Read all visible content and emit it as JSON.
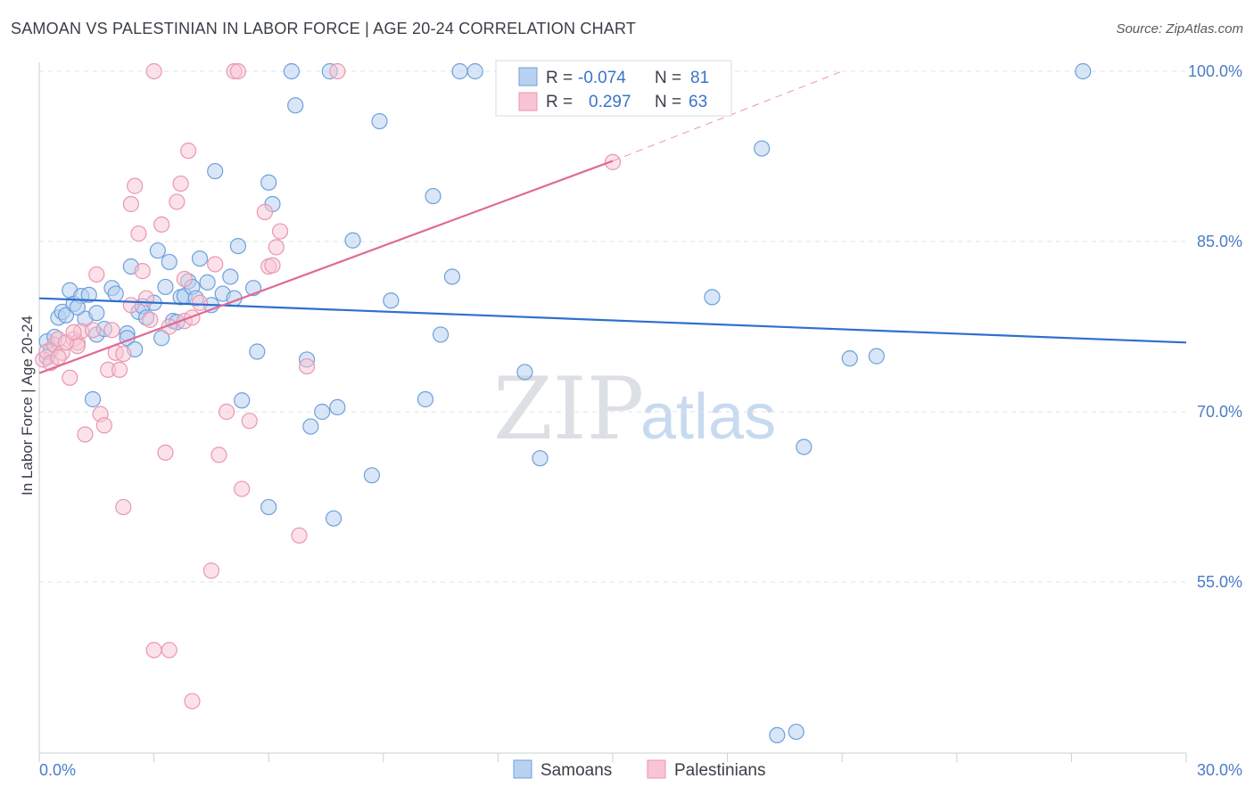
{
  "title": "SAMOAN VS PALESTINIAN IN LABOR FORCE | AGE 20-24 CORRELATION CHART",
  "source": "Source: ZipAtlas.com",
  "watermark": {
    "zip": "ZIP",
    "atlas": "atlas"
  },
  "colors": {
    "blue_fill": "#b8d1f0",
    "blue_stroke": "#6f9fdc",
    "blue_line": "#2f6fce",
    "pink_fill": "#f7c5d4",
    "pink_stroke": "#ea96b1",
    "pink_line": "#e06a96",
    "tick_text": "#4a7cc7",
    "grid": "#dde3ea"
  },
  "legend": {
    "r_label": "R =",
    "n_label": "N =",
    "rows": [
      {
        "series": "Samoans",
        "r": "-0.074",
        "n": "81"
      },
      {
        "series": "Palestinians",
        "r": "0.297",
        "n": "63"
      }
    ]
  },
  "bottom_legend": [
    "Samoans",
    "Palestinians"
  ],
  "chart_data": {
    "type": "scatter",
    "title": "SAMOAN VS PALESTINIAN IN LABOR FORCE | AGE 20-24 CORRELATION CHART",
    "xlabel": "",
    "ylabel": "In Labor Force | Age 20-24",
    "xlim": [
      0,
      30
    ],
    "ylim": [
      40,
      100
    ],
    "x_tick_labels": [
      "0.0%",
      "30.0%"
    ],
    "y_ticks": [
      55,
      70,
      85,
      100
    ],
    "y_tick_labels": [
      "55.0%",
      "70.0%",
      "85.0%",
      "100.0%"
    ],
    "series": [
      {
        "name": "Samoans",
        "r": -0.074,
        "n": 81,
        "trend": {
          "x": [
            0,
            30
          ],
          "y": [
            80.0,
            76.1
          ]
        },
        "points": [
          [
            0.2,
            76.2
          ],
          [
            0.4,
            76.6
          ],
          [
            0.3,
            75.4
          ],
          [
            0.2,
            74.8
          ],
          [
            0.5,
            78.3
          ],
          [
            0.6,
            78.8
          ],
          [
            0.8,
            80.7
          ],
          [
            0.7,
            78.5
          ],
          [
            0.9,
            79.5
          ],
          [
            1.1,
            80.2
          ],
          [
            1.2,
            78.2
          ],
          [
            1.3,
            80.3
          ],
          [
            1.0,
            79.2
          ],
          [
            1.5,
            78.7
          ],
          [
            1.5,
            76.8
          ],
          [
            1.7,
            77.3
          ],
          [
            1.9,
            80.9
          ],
          [
            2.0,
            80.4
          ],
          [
            2.3,
            76.9
          ],
          [
            2.3,
            76.5
          ],
          [
            2.5,
            75.5
          ],
          [
            2.4,
            82.8
          ],
          [
            2.6,
            78.8
          ],
          [
            2.7,
            79.3
          ],
          [
            2.8,
            78.3
          ],
          [
            3.0,
            79.6
          ],
          [
            3.1,
            84.2
          ],
          [
            3.2,
            76.5
          ],
          [
            3.3,
            81.0
          ],
          [
            3.4,
            83.2
          ],
          [
            3.5,
            78.0
          ],
          [
            3.6,
            77.9
          ],
          [
            3.7,
            80.1
          ],
          [
            3.9,
            81.5
          ],
          [
            3.8,
            80.2
          ],
          [
            4.0,
            81.0
          ],
          [
            4.1,
            80.0
          ],
          [
            4.2,
            83.5
          ],
          [
            4.4,
            81.4
          ],
          [
            4.5,
            79.4
          ],
          [
            4.6,
            91.2
          ],
          [
            4.8,
            80.4
          ],
          [
            5.0,
            81.9
          ],
          [
            5.2,
            84.6
          ],
          [
            5.1,
            80.0
          ],
          [
            5.6,
            80.9
          ],
          [
            5.7,
            75.3
          ],
          [
            5.3,
            71.0
          ],
          [
            6.0,
            90.2
          ],
          [
            6.1,
            88.3
          ],
          [
            6.0,
            61.6
          ],
          [
            6.6,
            100.0
          ],
          [
            6.7,
            97.0
          ],
          [
            7.0,
            74.6
          ],
          [
            7.1,
            68.7
          ],
          [
            7.4,
            70.0
          ],
          [
            7.6,
            100.0
          ],
          [
            7.7,
            60.6
          ],
          [
            7.8,
            70.4
          ],
          [
            8.2,
            85.1
          ],
          [
            8.7,
            64.4
          ],
          [
            8.9,
            95.6
          ],
          [
            9.2,
            79.8
          ],
          [
            10.1,
            71.1
          ],
          [
            10.3,
            89.0
          ],
          [
            10.5,
            76.8
          ],
          [
            10.8,
            81.9
          ],
          [
            11.0,
            100.0
          ],
          [
            11.4,
            100.0
          ],
          [
            12.7,
            73.5
          ],
          [
            13.1,
            65.9
          ],
          [
            15.1,
            100.0
          ],
          [
            17.6,
            80.1
          ],
          [
            18.9,
            93.2
          ],
          [
            20.0,
            66.9
          ],
          [
            21.2,
            74.7
          ],
          [
            21.9,
            74.9
          ],
          [
            27.3,
            100.0
          ],
          [
            19.3,
            41.5
          ],
          [
            19.8,
            41.8
          ],
          [
            1.4,
            71.1
          ]
        ]
      },
      {
        "name": "Palestinians",
        "r": 0.297,
        "n": 63,
        "trend": {
          "x": [
            0,
            15
          ],
          "y": [
            73.4,
            92.1
          ]
        },
        "trend_dashed": {
          "x": [
            15,
            21
          ],
          "y": [
            92.1,
            100
          ]
        },
        "points": [
          [
            0.1,
            74.6
          ],
          [
            0.2,
            75.3
          ],
          [
            0.3,
            74.3
          ],
          [
            0.4,
            75.9
          ],
          [
            0.5,
            76.4
          ],
          [
            0.6,
            75.2
          ],
          [
            0.8,
            73.0
          ],
          [
            0.9,
            76.4
          ],
          [
            1.0,
            76.1
          ],
          [
            1.1,
            77.1
          ],
          [
            1.2,
            68.0
          ],
          [
            1.4,
            77.2
          ],
          [
            1.5,
            82.1
          ],
          [
            1.6,
            69.8
          ],
          [
            1.7,
            68.8
          ],
          [
            1.8,
            73.7
          ],
          [
            1.9,
            77.2
          ],
          [
            2.0,
            75.2
          ],
          [
            2.1,
            73.7
          ],
          [
            2.2,
            75.1
          ],
          [
            2.4,
            79.4
          ],
          [
            2.2,
            61.6
          ],
          [
            2.4,
            88.3
          ],
          [
            2.5,
            89.9
          ],
          [
            2.6,
            85.7
          ],
          [
            2.7,
            82.4
          ],
          [
            2.8,
            80.0
          ],
          [
            2.9,
            78.1
          ],
          [
            3.0,
            100.0
          ],
          [
            3.0,
            49.0
          ],
          [
            3.2,
            86.5
          ],
          [
            3.3,
            66.4
          ],
          [
            3.4,
            49.0
          ],
          [
            3.4,
            77.5
          ],
          [
            3.6,
            88.5
          ],
          [
            3.7,
            90.1
          ],
          [
            3.8,
            81.7
          ],
          [
            3.8,
            78.0
          ],
          [
            3.9,
            93.0
          ],
          [
            4.0,
            78.3
          ],
          [
            4.0,
            44.5
          ],
          [
            4.2,
            79.6
          ],
          [
            4.5,
            56.0
          ],
          [
            4.6,
            83.0
          ],
          [
            4.7,
            66.2
          ],
          [
            4.9,
            70.0
          ],
          [
            5.1,
            100.0
          ],
          [
            5.2,
            100.0
          ],
          [
            5.3,
            63.2
          ],
          [
            5.5,
            69.2
          ],
          [
            5.9,
            87.6
          ],
          [
            6.0,
            82.8
          ],
          [
            6.1,
            82.9
          ],
          [
            6.2,
            84.5
          ],
          [
            6.3,
            85.9
          ],
          [
            6.8,
            59.1
          ],
          [
            7.0,
            74.0
          ],
          [
            7.8,
            100.0
          ],
          [
            15.0,
            92.0
          ],
          [
            1.0,
            75.8
          ],
          [
            0.7,
            76.1
          ],
          [
            0.5,
            74.8
          ],
          [
            0.9,
            77.0
          ]
        ]
      }
    ]
  }
}
